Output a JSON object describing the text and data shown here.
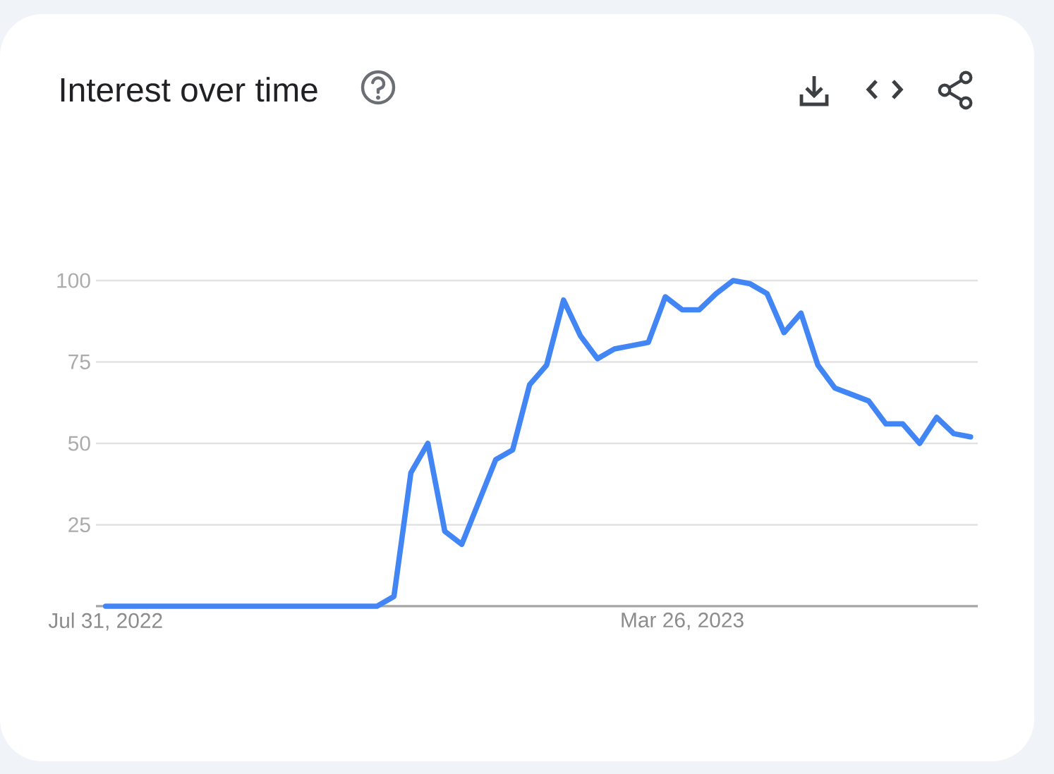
{
  "chart_data": {
    "type": "line",
    "title": "Interest over time",
    "x": [
      "2022-07-31",
      "2022-08-07",
      "2022-08-14",
      "2022-08-21",
      "2022-08-28",
      "2022-09-04",
      "2022-09-11",
      "2022-09-18",
      "2022-09-25",
      "2022-10-02",
      "2022-10-09",
      "2022-10-16",
      "2022-10-23",
      "2022-10-30",
      "2022-11-06",
      "2022-11-13",
      "2022-11-20",
      "2022-11-27",
      "2022-12-04",
      "2022-12-11",
      "2022-12-18",
      "2022-12-25",
      "2023-01-01",
      "2023-01-08",
      "2023-01-15",
      "2023-01-22",
      "2023-01-29",
      "2023-02-05",
      "2023-02-12",
      "2023-02-19",
      "2023-02-26",
      "2023-03-05",
      "2023-03-12",
      "2023-03-19",
      "2023-03-26",
      "2023-04-02",
      "2023-04-09",
      "2023-04-16",
      "2023-04-23",
      "2023-04-30",
      "2023-05-07",
      "2023-05-14",
      "2023-05-21",
      "2023-05-28",
      "2023-06-04",
      "2023-06-11",
      "2023-06-18",
      "2023-06-25",
      "2023-07-02",
      "2023-07-09",
      "2023-07-16",
      "2023-07-23"
    ],
    "values": [
      0,
      0,
      0,
      0,
      0,
      0,
      0,
      0,
      0,
      0,
      0,
      0,
      0,
      0,
      0,
      0,
      0,
      3,
      41,
      50,
      23,
      19,
      32,
      45,
      48,
      68,
      74,
      94,
      83,
      76,
      79,
      80,
      81,
      95,
      91,
      91,
      96,
      100,
      99,
      96,
      84,
      90,
      74,
      67,
      65,
      63,
      56,
      56,
      50,
      58,
      53,
      52
    ],
    "color": "#4285f4",
    "xlim": [
      "2022-07-27",
      "2023-07-26"
    ],
    "xticks": [
      {
        "value": "2022-07-31",
        "label": "Jul 31, 2022"
      },
      {
        "value": "2023-03-26",
        "label": "Mar 26, 2023"
      }
    ],
    "ylim": [
      0,
      100
    ],
    "yticks": [
      25,
      50,
      75,
      100
    ],
    "grid": "y"
  }
}
